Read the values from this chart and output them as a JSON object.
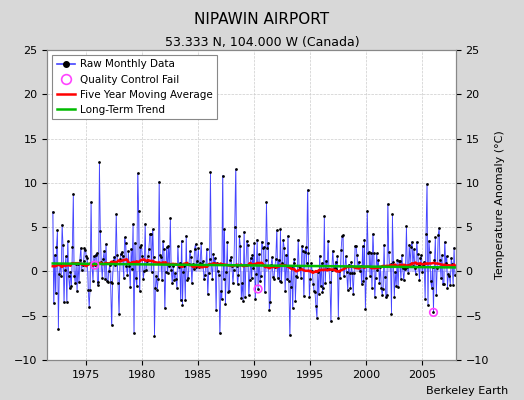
{
  "title": "NIPAWIN AIRPORT",
  "subtitle": "53.333 N, 104.000 W (Canada)",
  "ylabel": "Temperature Anomaly (°C)",
  "credit": "Berkeley Earth",
  "xlim": [
    1971.5,
    2008.0
  ],
  "ylim": [
    -10,
    25
  ],
  "yticks_left": [
    -10,
    -5,
    0,
    5,
    10,
    15,
    20,
    25
  ],
  "yticks_right": [
    -10,
    -5,
    0,
    5,
    10,
    15,
    20,
    25
  ],
  "xticks": [
    1975,
    1980,
    1985,
    1990,
    1995,
    2000,
    2005
  ],
  "fig_bg_color": "#d8d8d8",
  "plot_bg_color": "#ffffff",
  "line_color": "#4444ff",
  "stem_color": "#8888ff",
  "marker_color": "#000000",
  "moving_avg_color": "#ff0000",
  "trend_color": "#00bb00",
  "qc_fail_color": "#ff44ff",
  "seed": 17
}
